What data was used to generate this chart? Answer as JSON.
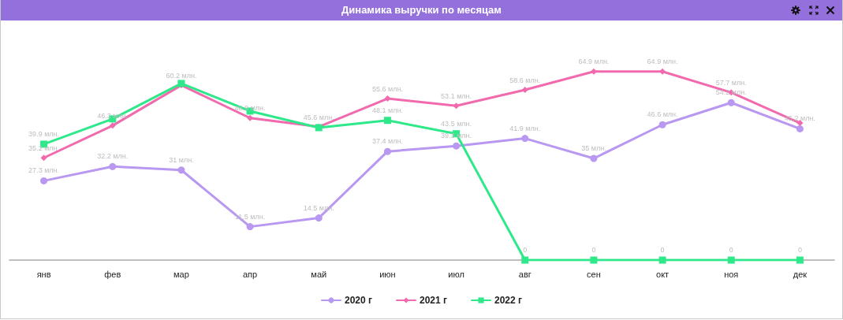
{
  "chart_data": {
    "type": "line",
    "title": "Динамика выручки по месяцам",
    "categories": [
      "янв",
      "фев",
      "мар",
      "апр",
      "май",
      "июн",
      "июл",
      "авг",
      "сен",
      "окт",
      "ноя",
      "дек"
    ],
    "series": [
      {
        "name": "2020 г",
        "color": "#b898f0",
        "marker": "circle",
        "values": [
          27.3,
          32.2,
          31,
          11.5,
          14.5,
          37.4,
          39.3,
          41.9,
          35,
          46.6,
          54.2,
          45.2
        ],
        "value_labels": [
          "27.3 млн.",
          "32.2 млн.",
          "31 млн.",
          "11.5 млн.",
          "14.5 млн.",
          "37.4 млн.",
          "39.3 млн.",
          "41.9 млн.",
          "35 млн.",
          "46.6 млн.",
          "54.2 млн.",
          "45.2 млн."
        ]
      },
      {
        "name": "2021 г",
        "color": "#f26aae",
        "marker": "diamond",
        "values": [
          35.2,
          46.3,
          60.2,
          48.9,
          45.9,
          55.6,
          53.1,
          58.6,
          64.9,
          64.9,
          57.7,
          47.2
        ],
        "value_labels": [
          "35.2 млн.",
          "46.3 млн.",
          "60.2 млн.",
          "48.9 млн.",
          null,
          "55.6 млн.",
          "53.1 млн.",
          "58.6 млн.",
          "64.9 млн.",
          "64.9 млн.",
          "57.7 млн.",
          null
        ]
      },
      {
        "name": "2022 г",
        "color": "#2ee88a",
        "marker": "square",
        "values": [
          39.9,
          48.6,
          60.8,
          51.3,
          45.6,
          48.1,
          43.5,
          0,
          0,
          0,
          0,
          0
        ],
        "value_labels": [
          "39.9 млн.",
          null,
          null,
          null,
          "45.6 млн.",
          "48.1 млн.",
          "43.5 млн.",
          "0",
          "0",
          "0",
          "0",
          "0"
        ]
      }
    ],
    "legend": "bottom",
    "grid": false,
    "tick_labels": "x",
    "line_style": "solid"
  }
}
